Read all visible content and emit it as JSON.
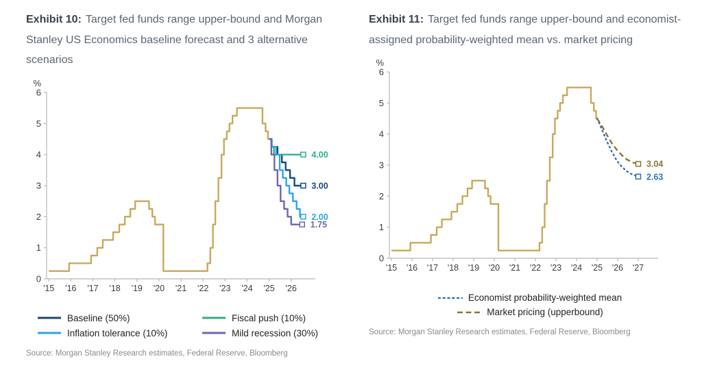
{
  "exhibits": [
    {
      "title_prefix": "Exhibit 10:",
      "title_rest": "Target fed funds range upper-bound and Morgan Stanley US Economics baseline forecast and 3 alternative scenarios",
      "source": "Source: Morgan Stanley Research estimates, Federal Reserve, Bloomberg"
    },
    {
      "title_prefix": "Exhibit 11:",
      "title_rest": "Target fed funds range upper-bound and economist-assigned probability-weighted mean vs. market pricing",
      "source": "Source: Morgan Stanley Research estimates, Federal Reserve, Bloomberg"
    }
  ],
  "chart_data": [
    {
      "type": "line",
      "title": "Target fed funds range upper-bound and Morgan Stanley US Economics baseline forecast and 3 alternative scenarios",
      "xlabel": "",
      "ylabel": "%",
      "ylim": [
        0,
        6
      ],
      "yticks": [
        0,
        1,
        2,
        3,
        4,
        5,
        6
      ],
      "xlim": [
        2014.9,
        2026.85
      ],
      "xtick_positions": [
        2015,
        2016,
        2017,
        2018,
        2019,
        2020,
        2021,
        2022,
        2023,
        2024,
        2025,
        2026
      ],
      "xticks": [
        "'15",
        "'16",
        "'17",
        "'18",
        "'19",
        "'20",
        "'21",
        "'22",
        "'23",
        "'24",
        "'25",
        "'26"
      ],
      "grid": false,
      "legend_position": "bottom",
      "series": [
        {
          "name": "Target fed funds upper-bound (history)",
          "color": "#c8a85b",
          "style": "solid",
          "interp": "step",
          "points": [
            [
              2015.0,
              0.25
            ],
            [
              2015.92,
              0.5
            ],
            [
              2016.92,
              0.75
            ],
            [
              2017.2,
              1.0
            ],
            [
              2017.45,
              1.25
            ],
            [
              2017.92,
              1.5
            ],
            [
              2018.2,
              1.75
            ],
            [
              2018.45,
              2.0
            ],
            [
              2018.7,
              2.25
            ],
            [
              2018.92,
              2.5
            ],
            [
              2019.55,
              2.25
            ],
            [
              2019.7,
              2.0
            ],
            [
              2019.82,
              1.75
            ],
            [
              2020.2,
              0.25
            ],
            [
              2022.2,
              0.5
            ],
            [
              2022.33,
              1.0
            ],
            [
              2022.45,
              1.75
            ],
            [
              2022.56,
              2.5
            ],
            [
              2022.7,
              3.25
            ],
            [
              2022.84,
              4.0
            ],
            [
              2022.95,
              4.5
            ],
            [
              2023.08,
              4.75
            ],
            [
              2023.2,
              5.0
            ],
            [
              2023.34,
              5.25
            ],
            [
              2023.54,
              5.5
            ],
            [
              2024.7,
              5.0
            ],
            [
              2024.84,
              4.75
            ],
            [
              2024.95,
              4.5
            ],
            [
              2025.05,
              4.5
            ]
          ]
        },
        {
          "name": "Baseline (50%)",
          "color": "#17497a",
          "style": "solid",
          "interp": "step",
          "end_label": "3.00",
          "end_value": 3.0,
          "points": [
            [
              2025.0,
              4.5
            ],
            [
              2025.12,
              4.25
            ],
            [
              2025.38,
              4.0
            ],
            [
              2025.58,
              3.75
            ],
            [
              2025.75,
              3.5
            ],
            [
              2025.95,
              3.25
            ],
            [
              2026.15,
              3.0
            ],
            [
              2026.55,
              3.0
            ]
          ]
        },
        {
          "name": "Fiscal push (10%)",
          "color": "#2fae8b",
          "style": "solid",
          "interp": "step",
          "end_label": "4.00",
          "end_value": 4.0,
          "points": [
            [
              2025.0,
              4.5
            ],
            [
              2025.1,
              4.25
            ],
            [
              2025.22,
              4.0
            ],
            [
              2026.55,
              4.0
            ]
          ]
        },
        {
          "name": "Inflation tolerance (10%)",
          "color": "#2ea5dc",
          "style": "solid",
          "interp": "step",
          "end_label": "2.00",
          "end_value": 2.0,
          "points": [
            [
              2025.0,
              4.5
            ],
            [
              2025.12,
              4.25
            ],
            [
              2025.32,
              4.0
            ],
            [
              2025.48,
              3.5
            ],
            [
              2025.62,
              3.25
            ],
            [
              2025.78,
              3.0
            ],
            [
              2025.92,
              2.75
            ],
            [
              2026.08,
              2.5
            ],
            [
              2026.25,
              2.25
            ],
            [
              2026.4,
              2.0
            ],
            [
              2026.55,
              2.0
            ]
          ]
        },
        {
          "name": "Mild recession (30%)",
          "color": "#6b68ae",
          "style": "solid",
          "interp": "step",
          "end_label": "1.75",
          "end_value": 1.75,
          "points": [
            [
              2025.0,
              4.5
            ],
            [
              2025.1,
              4.0
            ],
            [
              2025.24,
              3.5
            ],
            [
              2025.38,
              3.0
            ],
            [
              2025.52,
              2.5
            ],
            [
              2025.68,
              2.25
            ],
            [
              2025.84,
              2.0
            ],
            [
              2026.0,
              1.75
            ],
            [
              2026.5,
              1.75
            ]
          ]
        }
      ]
    },
    {
      "type": "line",
      "title": "Target fed funds range upper-bound and economist-assigned probability-weighted mean vs. market pricing",
      "xlabel": "",
      "ylabel": "%",
      "ylim": [
        0,
        6
      ],
      "yticks": [
        0,
        1,
        2,
        3,
        4,
        5,
        6
      ],
      "xlim": [
        2014.9,
        2027.7
      ],
      "xtick_positions": [
        2015,
        2016,
        2017,
        2018,
        2019,
        2020,
        2021,
        2022,
        2023,
        2024,
        2025,
        2026,
        2027
      ],
      "xticks": [
        "'15",
        "'16",
        "'17",
        "'18",
        "'19",
        "'20",
        "'21",
        "'22",
        "'23",
        "'24",
        "'25",
        "'26",
        "'27"
      ],
      "grid": false,
      "legend_position": "bottom",
      "series": [
        {
          "name": "Target fed funds upper-bound (history)",
          "color": "#c8a85b",
          "style": "solid",
          "interp": "step",
          "points": [
            [
              2015.0,
              0.25
            ],
            [
              2015.92,
              0.5
            ],
            [
              2016.92,
              0.75
            ],
            [
              2017.2,
              1.0
            ],
            [
              2017.45,
              1.25
            ],
            [
              2017.92,
              1.5
            ],
            [
              2018.2,
              1.75
            ],
            [
              2018.45,
              2.0
            ],
            [
              2018.7,
              2.25
            ],
            [
              2018.92,
              2.5
            ],
            [
              2019.55,
              2.25
            ],
            [
              2019.7,
              2.0
            ],
            [
              2019.82,
              1.75
            ],
            [
              2020.2,
              0.25
            ],
            [
              2022.2,
              0.5
            ],
            [
              2022.33,
              1.0
            ],
            [
              2022.45,
              1.75
            ],
            [
              2022.56,
              2.5
            ],
            [
              2022.7,
              3.25
            ],
            [
              2022.84,
              4.0
            ],
            [
              2022.95,
              4.5
            ],
            [
              2023.08,
              4.75
            ],
            [
              2023.2,
              5.0
            ],
            [
              2023.34,
              5.25
            ],
            [
              2023.54,
              5.5
            ],
            [
              2024.7,
              5.0
            ],
            [
              2024.84,
              4.75
            ],
            [
              2024.95,
              4.5
            ],
            [
              2025.05,
              4.5
            ]
          ]
        },
        {
          "name": "Economist probability-weighted mean",
          "color": "#2e74b5",
          "style": "dotted",
          "interp": "linear",
          "end_label": "2.63",
          "end_value": 2.63,
          "points": [
            [
              2025.0,
              4.5
            ],
            [
              2025.2,
              4.2
            ],
            [
              2025.45,
              3.8
            ],
            [
              2025.7,
              3.45
            ],
            [
              2025.95,
              3.15
            ],
            [
              2026.2,
              2.95
            ],
            [
              2026.45,
              2.8
            ],
            [
              2026.7,
              2.7
            ],
            [
              2027.0,
              2.63
            ]
          ]
        },
        {
          "name": "Market pricing (upperbound)",
          "color": "#8b7433",
          "style": "dashed",
          "interp": "linear",
          "end_label": "3.04",
          "end_value": 3.04,
          "points": [
            [
              2025.0,
              4.5
            ],
            [
              2025.2,
              4.3
            ],
            [
              2025.45,
              4.0
            ],
            [
              2025.7,
              3.72
            ],
            [
              2025.95,
              3.5
            ],
            [
              2026.2,
              3.32
            ],
            [
              2026.45,
              3.18
            ],
            [
              2026.7,
              3.09
            ],
            [
              2027.0,
              3.04
            ]
          ]
        }
      ]
    }
  ]
}
